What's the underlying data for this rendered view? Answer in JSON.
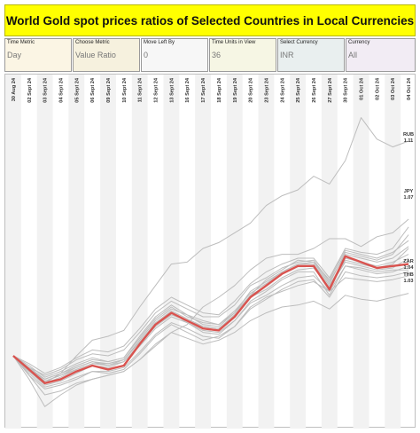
{
  "title": "World Gold spot prices ratios of Selected Countries in Local Currencies",
  "filters": [
    {
      "key": "time_metric",
      "label": "Time Metric",
      "value": "Day",
      "bg": "#fbf5e4"
    },
    {
      "key": "choose_metric",
      "label": "Choose Metric",
      "value": "Value Ratio",
      "bg": "#f6f1de"
    },
    {
      "key": "move_left_by",
      "label": "Move Left By",
      "value": "0",
      "bg": "#f7f7f7"
    },
    {
      "key": "time_units",
      "label": "Time Units in View",
      "value": "36",
      "bg": "#f6f6e4"
    },
    {
      "key": "select_currency",
      "label": "Select Currency",
      "value": "INR",
      "bg": "#e9efef"
    },
    {
      "key": "currency",
      "label": "Currency",
      "value": "All",
      "bg": "#f2ecf4"
    }
  ],
  "chart_data": {
    "type": "line",
    "title": "",
    "xlabel": "",
    "ylabel": "",
    "categories": [
      "30 Aug 24",
      "02 Sept 24",
      "03 Sept 24",
      "04 Sept 24",
      "05 Sept 24",
      "06 Sept 24",
      "09 Sept 24",
      "10 Sept 24",
      "11 Sept 24",
      "12 Sept 24",
      "13 Sept 24",
      "16 Sept 24",
      "17 Sept 24",
      "18 Sept 24",
      "19 Sept 24",
      "20 Sept 24",
      "23 Sept 24",
      "24 Sept 24",
      "25 Sept 24",
      "26 Sept 24",
      "27 Sept 24",
      "30 Sept 24",
      "01 Oct 24",
      "02 Oct 24",
      "03 Oct 24",
      "04 Oct 24"
    ],
    "ylim": [
      0.965,
      1.125
    ],
    "grid": "alternating column bands",
    "colors": {
      "highlight": "#d9534f",
      "others": "#bdbdbd",
      "band": "#f2f2f2"
    },
    "highlight_series": 0,
    "end_labels": [
      {
        "name": "RUB",
        "value": "1.11"
      },
      {
        "name": "JPY",
        "value": "1.07"
      },
      {
        "name": "ZAR",
        "value": "1.04"
      },
      {
        "name": "THB",
        "value": "1.03"
      }
    ],
    "series": [
      {
        "name": "",
        "values": [
          1.0,
          0.993,
          0.986,
          0.988,
          0.992,
          0.995,
          0.993,
          0.995,
          1.006,
          1.016,
          1.022,
          1.018,
          1.014,
          1.013,
          1.02,
          1.03,
          1.036,
          1.042,
          1.046,
          1.046,
          1.034,
          1.051,
          1.048,
          1.045,
          1.046,
          1.047
        ]
      },
      {
        "name": "RUB",
        "values": [
          1.0,
          0.992,
          0.986,
          0.991,
          1.0,
          1.008,
          1.01,
          1.013,
          1.025,
          1.036,
          1.047,
          1.048,
          1.055,
          1.058,
          1.063,
          1.068,
          1.077,
          1.082,
          1.085,
          1.092,
          1.088,
          1.1,
          1.122,
          1.111,
          1.107,
          1.11
        ]
      },
      {
        "name": "JPY",
        "values": [
          1.0,
          0.988,
          0.974,
          0.98,
          0.985,
          0.988,
          0.99,
          0.992,
          0.998,
          1.006,
          1.012,
          1.016,
          1.025,
          1.03,
          1.036,
          1.044,
          1.05,
          1.052,
          1.052,
          1.055,
          1.06,
          1.06,
          1.056,
          1.061,
          1.063,
          1.07
        ]
      },
      {
        "name": "ZAR",
        "values": [
          1.0,
          0.99,
          0.983,
          0.985,
          0.988,
          0.992,
          0.991,
          0.993,
          1.001,
          1.01,
          1.016,
          1.012,
          1.008,
          1.01,
          1.015,
          1.025,
          1.03,
          1.033,
          1.036,
          1.038,
          1.033,
          1.04,
          1.039,
          1.038,
          1.039,
          1.041
        ]
      },
      {
        "name": "THB",
        "values": [
          1.0,
          0.99,
          0.98,
          0.982,
          0.986,
          0.988,
          0.99,
          0.992,
          0.998,
          1.005,
          1.012,
          1.009,
          1.006,
          1.008,
          1.012,
          1.018,
          1.022,
          1.025,
          1.026,
          1.028,
          1.024,
          1.031,
          1.029,
          1.028,
          1.03,
          1.032
        ]
      },
      {
        "name": "",
        "values": [
          1.0,
          0.994,
          0.99,
          0.993,
          0.998,
          1.001,
          1.0,
          1.003,
          1.012,
          1.022,
          1.028,
          1.024,
          1.02,
          1.02,
          1.026,
          1.036,
          1.04,
          1.045,
          1.048,
          1.049,
          1.038,
          1.052,
          1.05,
          1.048,
          1.05,
          1.056
        ]
      },
      {
        "name": "",
        "values": [
          1.0,
          0.993,
          0.988,
          0.991,
          0.995,
          0.998,
          0.997,
          0.999,
          1.009,
          1.019,
          1.025,
          1.02,
          1.017,
          1.016,
          1.023,
          1.032,
          1.037,
          1.043,
          1.047,
          1.047,
          1.036,
          1.05,
          1.048,
          1.046,
          1.048,
          1.052
        ]
      },
      {
        "name": "",
        "values": [
          1.0,
          0.995,
          0.989,
          0.992,
          0.996,
          0.999,
          0.997,
          0.999,
          1.01,
          1.02,
          1.026,
          1.021,
          1.018,
          1.016,
          1.022,
          1.031,
          1.039,
          1.044,
          1.049,
          1.048,
          1.039,
          1.054,
          1.052,
          1.05,
          1.053,
          1.059
        ]
      },
      {
        "name": "",
        "values": [
          1.0,
          0.992,
          0.985,
          0.987,
          0.991,
          0.995,
          0.994,
          0.997,
          1.005,
          1.014,
          1.02,
          1.017,
          1.012,
          1.011,
          1.018,
          1.028,
          1.033,
          1.039,
          1.043,
          1.043,
          1.031,
          1.046,
          1.045,
          1.043,
          1.044,
          1.044
        ]
      },
      {
        "name": "",
        "values": [
          1.0,
          0.994,
          0.987,
          0.99,
          0.993,
          0.996,
          0.995,
          0.998,
          1.007,
          1.017,
          1.023,
          1.019,
          1.015,
          1.014,
          1.021,
          1.03,
          1.034,
          1.04,
          1.044,
          1.045,
          1.035,
          1.048,
          1.046,
          1.044,
          1.045,
          1.05
        ]
      },
      {
        "name": "",
        "values": [
          1.0,
          0.991,
          0.984,
          0.986,
          0.989,
          0.992,
          0.992,
          0.994,
          1.002,
          1.011,
          1.017,
          1.014,
          1.01,
          1.009,
          1.015,
          1.024,
          1.029,
          1.034,
          1.038,
          1.039,
          1.03,
          1.043,
          1.041,
          1.04,
          1.041,
          1.043
        ]
      },
      {
        "name": "",
        "values": [
          1.0,
          0.993,
          0.986,
          0.989,
          0.993,
          0.996,
          0.996,
          0.998,
          1.008,
          1.018,
          1.024,
          1.021,
          1.016,
          1.015,
          1.022,
          1.033,
          1.038,
          1.043,
          1.047,
          1.048,
          1.037,
          1.053,
          1.051,
          1.049,
          1.052,
          1.062
        ]
      },
      {
        "name": "",
        "values": [
          1.0,
          0.994,
          0.988,
          0.991,
          0.994,
          0.997,
          0.996,
          0.998,
          1.007,
          1.016,
          1.022,
          1.017,
          1.013,
          1.012,
          1.018,
          1.027,
          1.031,
          1.036,
          1.04,
          1.041,
          1.033,
          1.046,
          1.044,
          1.042,
          1.043,
          1.046
        ]
      },
      {
        "name": "",
        "values": [
          1.0,
          0.992,
          0.987,
          0.99,
          0.994,
          0.997,
          0.995,
          0.997,
          1.006,
          1.015,
          1.021,
          1.018,
          1.015,
          1.014,
          1.021,
          1.031,
          1.036,
          1.042,
          1.046,
          1.046,
          1.035,
          1.049,
          1.047,
          1.045,
          1.047,
          1.055
        ]
      },
      {
        "name": "",
        "values": [
          1.0,
          0.996,
          0.991,
          0.994,
          0.999,
          1.003,
          1.002,
          1.005,
          1.014,
          1.024,
          1.03,
          1.026,
          1.022,
          1.021,
          1.028,
          1.037,
          1.043,
          1.047,
          1.05,
          1.05,
          1.04,
          1.055,
          1.053,
          1.052,
          1.055,
          1.066
        ]
      }
    ]
  }
}
